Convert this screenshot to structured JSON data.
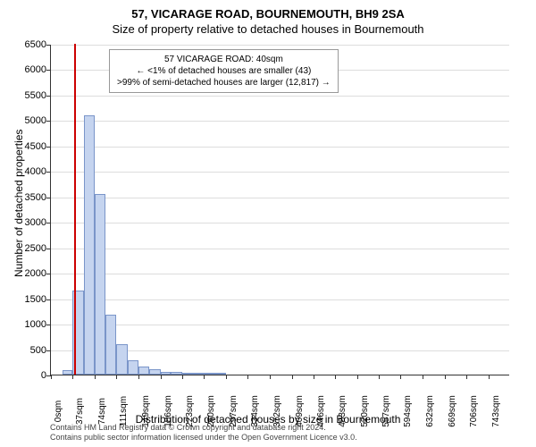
{
  "title_line1": "57, VICARAGE ROAD, BOURNEMOUTH, BH9 2SA",
  "title_line2": "Size of property relative to detached houses in Bournemouth",
  "y_label": "Number of detached properties",
  "x_label": "Distribution of detached houses by size in Bournemouth",
  "chart": {
    "type": "histogram",
    "y_min": 0,
    "y_max": 6500,
    "y_tick_step": 500,
    "x_min": 0,
    "x_max": 780,
    "x_tick_step": 37,
    "x_tick_unit": "sqm",
    "bar_color": "#c5d4ef",
    "bar_border": "#7a95c9",
    "grid_color": "#dddddd",
    "background": "#ffffff",
    "bars": [
      {
        "x_start": 19,
        "x_end": 37,
        "value": 80
      },
      {
        "x_start": 37,
        "x_end": 56,
        "value": 1650
      },
      {
        "x_start": 56,
        "x_end": 74,
        "value": 5100
      },
      {
        "x_start": 74,
        "x_end": 93,
        "value": 3550
      },
      {
        "x_start": 93,
        "x_end": 111,
        "value": 1180
      },
      {
        "x_start": 111,
        "x_end": 130,
        "value": 600
      },
      {
        "x_start": 130,
        "x_end": 149,
        "value": 280
      },
      {
        "x_start": 149,
        "x_end": 167,
        "value": 160
      },
      {
        "x_start": 167,
        "x_end": 186,
        "value": 100
      },
      {
        "x_start": 186,
        "x_end": 204,
        "value": 60
      },
      {
        "x_start": 204,
        "x_end": 223,
        "value": 50
      },
      {
        "x_start": 223,
        "x_end": 241,
        "value": 40
      },
      {
        "x_start": 241,
        "x_end": 260,
        "value": 30
      },
      {
        "x_start": 260,
        "x_end": 279,
        "value": 20
      },
      {
        "x_start": 279,
        "x_end": 297,
        "value": 15
      }
    ],
    "marker_line_x": 40,
    "marker_line_color": "#cc0000",
    "x_ticks": [
      0,
      37,
      74,
      111,
      149,
      186,
      223,
      260,
      297,
      334,
      372,
      409,
      446,
      483,
      520,
      557,
      594,
      632,
      669,
      706,
      743
    ]
  },
  "info_box": {
    "line1": "57 VICARAGE ROAD: 40sqm",
    "line2": "← <1% of detached houses are smaller (43)",
    "line3": ">99% of semi-detached houses are larger (12,817) →"
  },
  "footer_line1": "Contains HM Land Registry data © Crown copyright and database right 2024.",
  "footer_line2": "Contains public sector information licensed under the Open Government Licence v3.0."
}
